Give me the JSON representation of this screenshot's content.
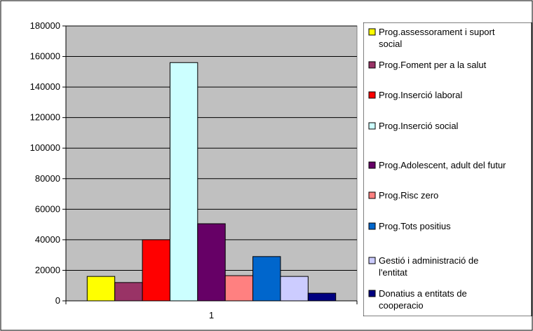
{
  "chart_data": {
    "type": "bar",
    "categories": [
      "1"
    ],
    "series": [
      {
        "name": "Prog.assessorament i suport social",
        "values": [
          16000
        ],
        "color": "#FFFF00"
      },
      {
        "name": "Prog.Foment per a la salut",
        "values": [
          12000
        ],
        "color": "#993366"
      },
      {
        "name": "Prog.Inserció laboral",
        "values": [
          40000
        ],
        "color": "#FF0000"
      },
      {
        "name": "Prog.Inserció social",
        "values": [
          156000
        ],
        "color": "#CCFFFF"
      },
      {
        "name": "Prog.Adolescent, adult del futur",
        "values": [
          50500
        ],
        "color": "#660066"
      },
      {
        "name": "Prog.Risc zero",
        "values": [
          16500
        ],
        "color": "#FF8080"
      },
      {
        "name": "Prog.Tots positius",
        "values": [
          29000
        ],
        "color": "#0066CC"
      },
      {
        "name": "Gestió i administració de l'entitat",
        "values": [
          16000
        ],
        "color": "#CCCCFF"
      },
      {
        "name": "Donatius a entitats de cooperacio",
        "values": [
          5000
        ],
        "color": "#000080"
      }
    ],
    "yticks": [
      "0",
      "20000",
      "40000",
      "60000",
      "80000",
      "100000",
      "120000",
      "140000",
      "160000",
      "180000"
    ],
    "ylim": [
      0,
      180000
    ],
    "grid": true,
    "legend": "right",
    "plot_background": "#C0C0C0"
  }
}
